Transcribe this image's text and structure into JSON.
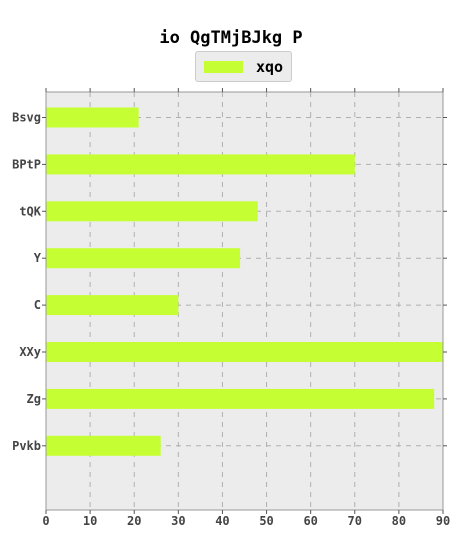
{
  "chart_data": {
    "type": "bar",
    "orientation": "horizontal",
    "title": "io QgTMjBJkg P",
    "xlabel": "",
    "ylabel": "",
    "categories": [
      "Bsvg",
      "BPtP",
      "tQK",
      "Y",
      "C",
      "XXy",
      "Zg",
      "Pvkb"
    ],
    "series": [
      {
        "name": "xqo",
        "values": [
          21,
          70,
          48,
          44,
          30,
          90,
          88,
          26
        ]
      }
    ],
    "xlim": [
      0,
      90
    ],
    "xticks": [
      0,
      10,
      20,
      30,
      40,
      50,
      60,
      70,
      80,
      90
    ],
    "grid": true,
    "legend_position": "top-center",
    "bar_color": "#c5ff33",
    "background_color": "#ececec"
  }
}
